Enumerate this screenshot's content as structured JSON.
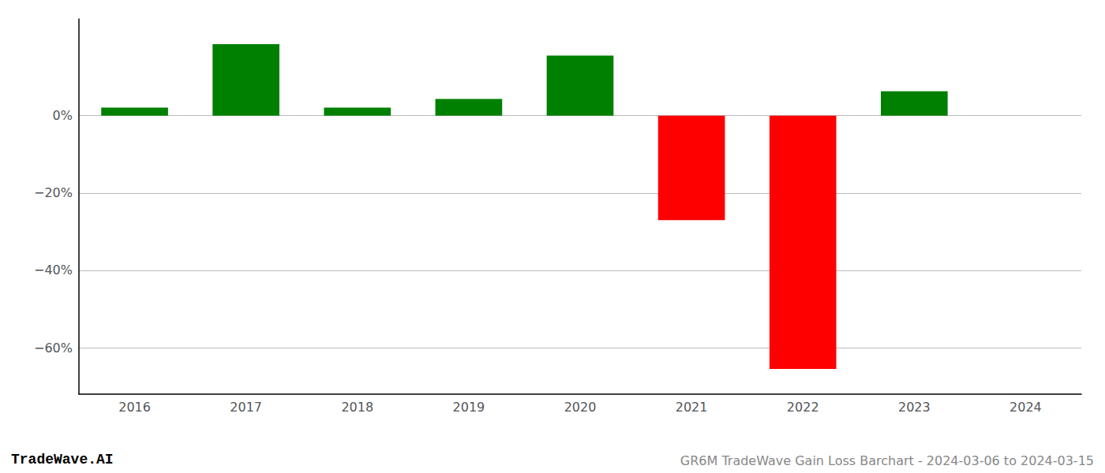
{
  "chart_data": {
    "type": "bar",
    "categories": [
      "2016",
      "2017",
      "2018",
      "2019",
      "2020",
      "2021",
      "2022",
      "2023",
      "2024"
    ],
    "values": [
      0.021,
      0.185,
      0.021,
      0.043,
      0.155,
      -0.27,
      -0.655,
      0.063,
      null
    ],
    "colors": [
      "#008000",
      "#008000",
      "#008000",
      "#008000",
      "#008000",
      "#ff0000",
      "#ff0000",
      "#008000",
      null
    ],
    "ylim": [
      -0.72,
      0.25
    ],
    "yticks": [
      {
        "value": 0,
        "label": "0%"
      },
      {
        "value": -0.2,
        "label": "−20%"
      },
      {
        "value": -0.4,
        "label": "−40%"
      },
      {
        "value": -0.6,
        "label": "−60%"
      }
    ],
    "grid": true,
    "annotations": [
      "TradeWave.AI",
      "GR6M TradeWave Gain Loss Barchart - 2024-03-06 to 2024-03-15"
    ]
  }
}
